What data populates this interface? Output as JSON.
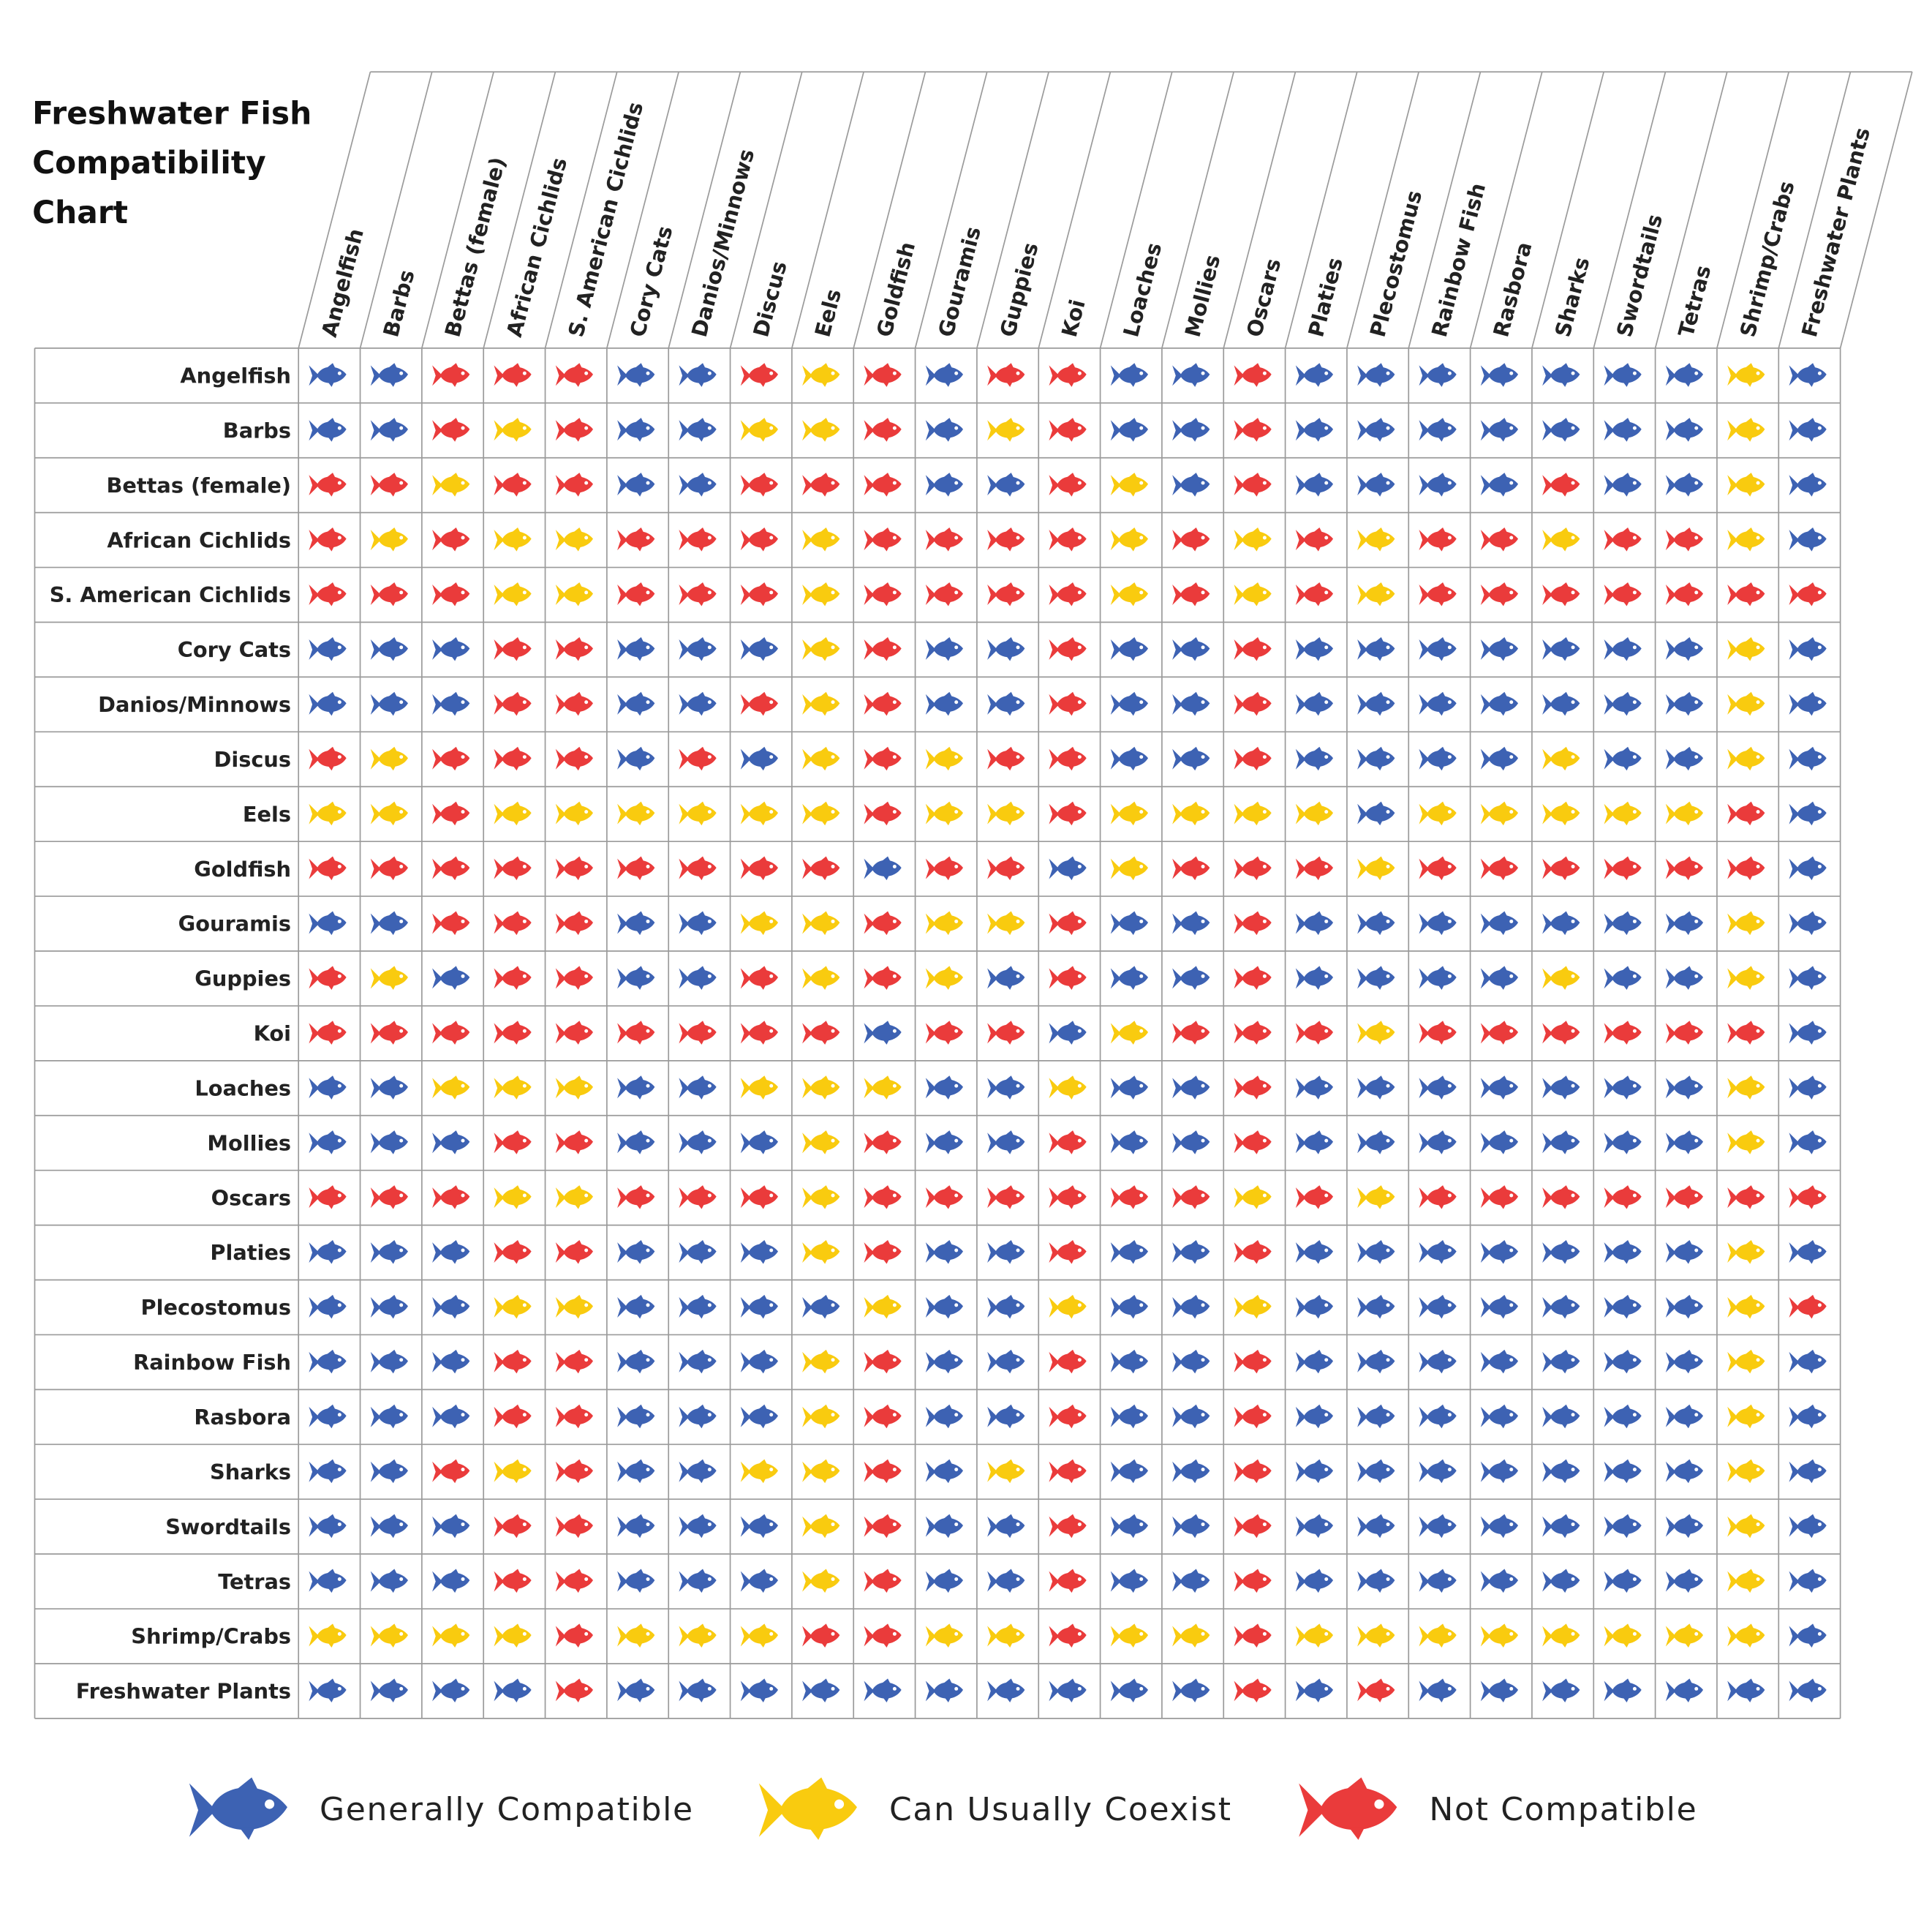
{
  "title": "Freshwater Fish Compatibility Chart",
  "legend": [
    {
      "label": "Generally Compatible",
      "color": "#3d62b3"
    },
    {
      "label": "Can Usually Coexist",
      "color": "#f9cb0f"
    },
    {
      "label": "Not Compatible",
      "color": "#ea3b3b"
    }
  ],
  "columns": [
    "Angelfish",
    "Barbs",
    "Bettas (female)",
    "African Cichlids",
    "S. American Cichlids",
    "Cory Cats",
    "Danios/Minnows",
    "Discus",
    "Eels",
    "Goldfish",
    "Gouramis",
    "Guppies",
    "Koi",
    "Loaches",
    "Mollies",
    "Oscars",
    "Platies",
    "Plecostomus",
    "Rainbow Fish",
    "Rasbora",
    "Sharks",
    "Swordtails",
    "Tetras",
    "Shrimp/Crabs",
    "Freshwater Plants"
  ],
  "rows": [
    {
      "label": "Angelfish",
      "cells": [
        0,
        0,
        2,
        2,
        2,
        0,
        0,
        2,
        1,
        2,
        0,
        2,
        2,
        0,
        0,
        2,
        0,
        0,
        0,
        0,
        0,
        0,
        0,
        1,
        0
      ]
    },
    {
      "label": "Barbs",
      "cells": [
        0,
        0,
        2,
        1,
        2,
        0,
        0,
        1,
        1,
        2,
        0,
        1,
        2,
        0,
        0,
        2,
        0,
        0,
        0,
        0,
        0,
        0,
        0,
        1,
        0
      ]
    },
    {
      "label": "Bettas (female)",
      "cells": [
        2,
        2,
        1,
        2,
        2,
        0,
        0,
        2,
        2,
        2,
        0,
        0,
        2,
        1,
        0,
        2,
        0,
        0,
        0,
        0,
        2,
        0,
        0,
        1,
        0
      ]
    },
    {
      "label": "African Cichlids",
      "cells": [
        2,
        1,
        2,
        1,
        1,
        2,
        2,
        2,
        1,
        2,
        2,
        2,
        2,
        1,
        2,
        1,
        2,
        1,
        2,
        2,
        1,
        2,
        2,
        1,
        0
      ]
    },
    {
      "label": "S. American Cichlids",
      "cells": [
        2,
        2,
        2,
        1,
        1,
        2,
        2,
        2,
        1,
        2,
        2,
        2,
        2,
        1,
        2,
        1,
        2,
        1,
        2,
        2,
        2,
        2,
        2,
        2,
        2
      ]
    },
    {
      "label": "Cory Cats",
      "cells": [
        0,
        0,
        0,
        2,
        2,
        0,
        0,
        0,
        1,
        2,
        0,
        0,
        2,
        0,
        0,
        2,
        0,
        0,
        0,
        0,
        0,
        0,
        0,
        1,
        0
      ]
    },
    {
      "label": "Danios/Minnows",
      "cells": [
        0,
        0,
        0,
        2,
        2,
        0,
        0,
        2,
        1,
        2,
        0,
        0,
        2,
        0,
        0,
        2,
        0,
        0,
        0,
        0,
        0,
        0,
        0,
        1,
        0
      ]
    },
    {
      "label": "Discus",
      "cells": [
        2,
        1,
        2,
        2,
        2,
        0,
        2,
        0,
        1,
        2,
        1,
        2,
        2,
        0,
        0,
        2,
        0,
        0,
        0,
        0,
        1,
        0,
        0,
        1,
        0
      ]
    },
    {
      "label": "Eels",
      "cells": [
        1,
        1,
        2,
        1,
        1,
        1,
        1,
        1,
        1,
        2,
        1,
        1,
        2,
        1,
        1,
        1,
        1,
        0,
        1,
        1,
        1,
        1,
        1,
        2,
        0
      ]
    },
    {
      "label": "Goldfish",
      "cells": [
        2,
        2,
        2,
        2,
        2,
        2,
        2,
        2,
        2,
        0,
        2,
        2,
        0,
        1,
        2,
        2,
        2,
        1,
        2,
        2,
        2,
        2,
        2,
        2,
        0
      ]
    },
    {
      "label": "Gouramis",
      "cells": [
        0,
        0,
        2,
        2,
        2,
        0,
        0,
        1,
        1,
        2,
        1,
        1,
        2,
        0,
        0,
        2,
        0,
        0,
        0,
        0,
        0,
        0,
        0,
        1,
        0
      ]
    },
    {
      "label": "Guppies",
      "cells": [
        2,
        1,
        0,
        2,
        2,
        0,
        0,
        2,
        1,
        2,
        1,
        0,
        2,
        0,
        0,
        2,
        0,
        0,
        0,
        0,
        1,
        0,
        0,
        1,
        0
      ]
    },
    {
      "label": "Koi",
      "cells": [
        2,
        2,
        2,
        2,
        2,
        2,
        2,
        2,
        2,
        0,
        2,
        2,
        0,
        1,
        2,
        2,
        2,
        1,
        2,
        2,
        2,
        2,
        2,
        2,
        0
      ]
    },
    {
      "label": "Loaches",
      "cells": [
        0,
        0,
        1,
        1,
        1,
        0,
        0,
        1,
        1,
        1,
        0,
        0,
        1,
        0,
        0,
        2,
        0,
        0,
        0,
        0,
        0,
        0,
        0,
        1,
        0
      ]
    },
    {
      "label": "Mollies",
      "cells": [
        0,
        0,
        0,
        2,
        2,
        0,
        0,
        0,
        1,
        2,
        0,
        0,
        2,
        0,
        0,
        2,
        0,
        0,
        0,
        0,
        0,
        0,
        0,
        1,
        0
      ]
    },
    {
      "label": "Oscars",
      "cells": [
        2,
        2,
        2,
        1,
        1,
        2,
        2,
        2,
        1,
        2,
        2,
        2,
        2,
        2,
        2,
        1,
        2,
        1,
        2,
        2,
        2,
        2,
        2,
        2,
        2
      ]
    },
    {
      "label": "Platies",
      "cells": [
        0,
        0,
        0,
        2,
        2,
        0,
        0,
        0,
        1,
        2,
        0,
        0,
        2,
        0,
        0,
        2,
        0,
        0,
        0,
        0,
        0,
        0,
        0,
        1,
        0
      ]
    },
    {
      "label": "Plecostomus",
      "cells": [
        0,
        0,
        0,
        1,
        1,
        0,
        0,
        0,
        0,
        1,
        0,
        0,
        1,
        0,
        0,
        1,
        0,
        0,
        0,
        0,
        0,
        0,
        0,
        1,
        2
      ]
    },
    {
      "label": "Rainbow Fish",
      "cells": [
        0,
        0,
        0,
        2,
        2,
        0,
        0,
        0,
        1,
        2,
        0,
        0,
        2,
        0,
        0,
        2,
        0,
        0,
        0,
        0,
        0,
        0,
        0,
        1,
        0
      ]
    },
    {
      "label": "Rasbora",
      "cells": [
        0,
        0,
        0,
        2,
        2,
        0,
        0,
        0,
        1,
        2,
        0,
        0,
        2,
        0,
        0,
        2,
        0,
        0,
        0,
        0,
        0,
        0,
        0,
        1,
        0
      ]
    },
    {
      "label": "Sharks",
      "cells": [
        0,
        0,
        2,
        1,
        2,
        0,
        0,
        1,
        1,
        2,
        0,
        1,
        2,
        0,
        0,
        2,
        0,
        0,
        0,
        0,
        0,
        0,
        0,
        1,
        0
      ]
    },
    {
      "label": "Swordtails",
      "cells": [
        0,
        0,
        0,
        2,
        2,
        0,
        0,
        0,
        1,
        2,
        0,
        0,
        2,
        0,
        0,
        2,
        0,
        0,
        0,
        0,
        0,
        0,
        0,
        1,
        0
      ]
    },
    {
      "label": "Tetras",
      "cells": [
        0,
        0,
        0,
        2,
        2,
        0,
        0,
        0,
        1,
        2,
        0,
        0,
        2,
        0,
        0,
        2,
        0,
        0,
        0,
        0,
        0,
        0,
        0,
        1,
        0
      ]
    },
    {
      "label": "Shrimp/Crabs",
      "cells": [
        1,
        1,
        1,
        1,
        2,
        1,
        1,
        1,
        2,
        2,
        1,
        1,
        2,
        1,
        1,
        2,
        1,
        1,
        1,
        1,
        1,
        1,
        1,
        1,
        0
      ]
    },
    {
      "label": "Freshwater Plants",
      "cells": [
        0,
        0,
        0,
        0,
        2,
        0,
        0,
        0,
        0,
        0,
        0,
        0,
        0,
        0,
        0,
        2,
        0,
        2,
        0,
        0,
        0,
        0,
        0,
        0,
        0
      ]
    }
  ]
}
